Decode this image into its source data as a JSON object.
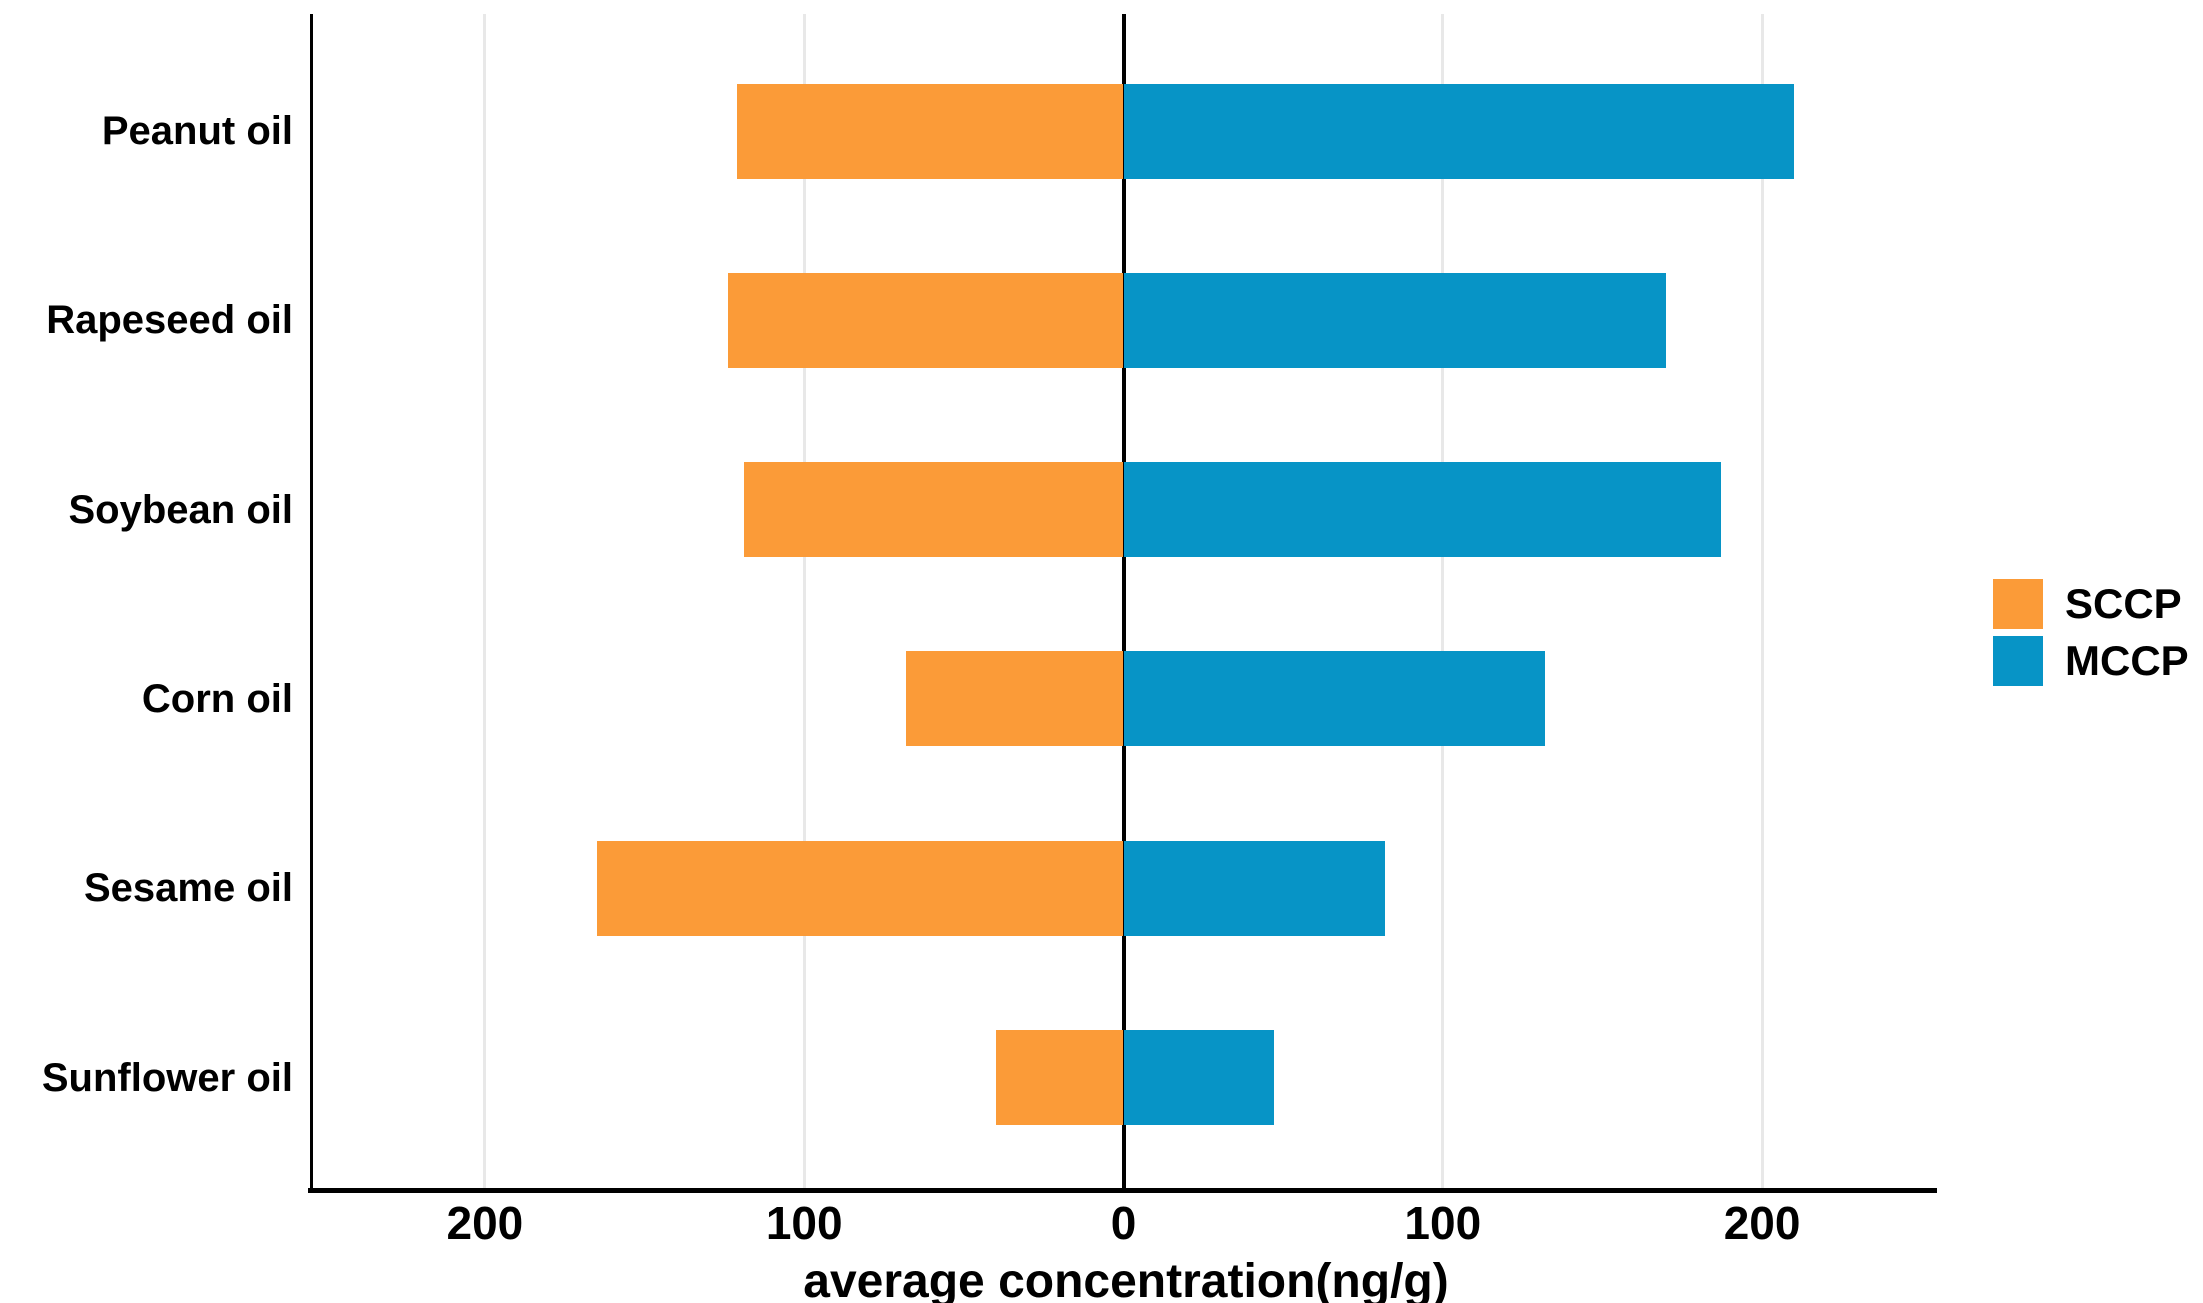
{
  "chart_data": {
    "type": "bar",
    "variant": "diverging-horizontal",
    "title": "",
    "xlabel": "average concentration(ng/g)",
    "ylabel": "",
    "categories": [
      "Peanut oil",
      "Rapeseed oil",
      "Soybean oil",
      "Corn oil",
      "Sesame oil",
      "Sunflower oil"
    ],
    "series": [
      {
        "name": "SCCP",
        "direction": "left",
        "color": "#FB9B38",
        "values": [
          121,
          124,
          119,
          68,
          165,
          40
        ]
      },
      {
        "name": "MCCP",
        "direction": "right",
        "color": "#0794C6",
        "values": [
          210,
          170,
          187,
          132,
          82,
          47
        ]
      }
    ],
    "x_ticks": [
      -200,
      -100,
      0,
      100,
      200
    ],
    "x_tick_labels": [
      "200",
      "100",
      "0",
      "100",
      "200"
    ],
    "xlim": [
      -255,
      255
    ],
    "grid": "vertical-lines-only",
    "gridline_color": "#e8e8e8",
    "zero_line_color": "#000000",
    "legend_position": "right-middle",
    "background": "#ffffff"
  }
}
